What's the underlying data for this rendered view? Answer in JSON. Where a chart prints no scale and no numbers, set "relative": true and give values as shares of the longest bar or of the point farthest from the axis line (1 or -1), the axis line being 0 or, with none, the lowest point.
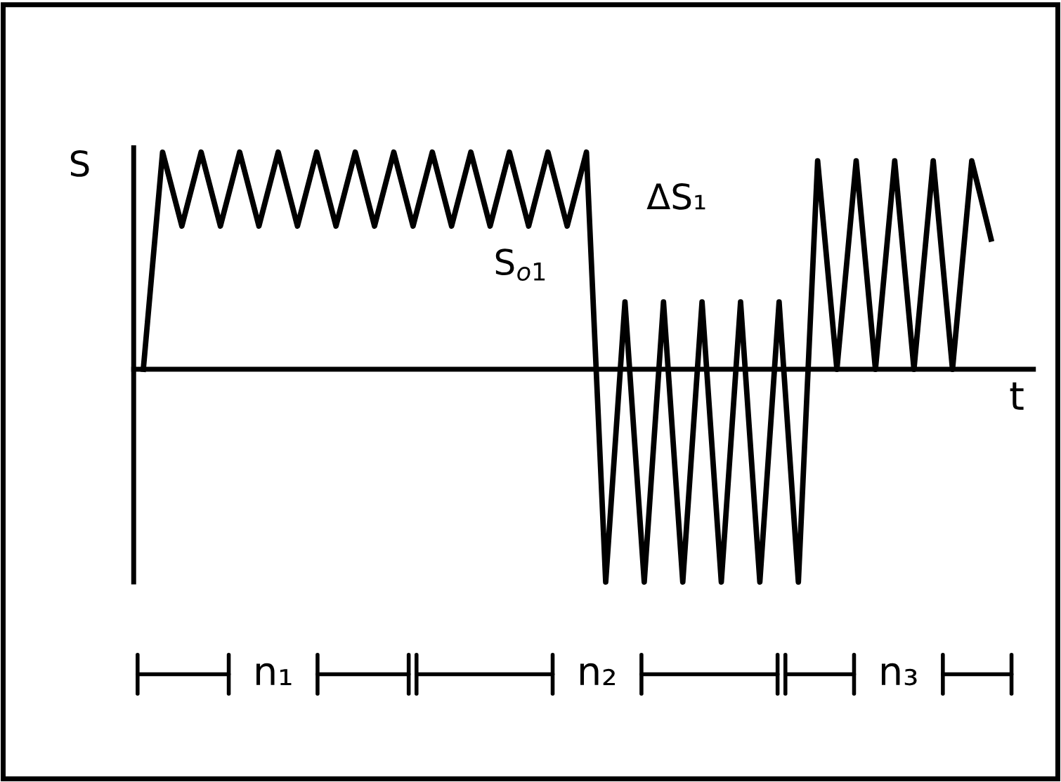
{
  "chart_data": {
    "type": "line",
    "relative": true,
    "xlabel": "t",
    "ylabel": "S",
    "grid": false,
    "legend": false,
    "marker": "none",
    "line_style": "solid",
    "categories": [
      null,
      null,
      null,
      null,
      null,
      null,
      null,
      null,
      null,
      null,
      null,
      null,
      null,
      null,
      null,
      null,
      null,
      null,
      null,
      null,
      null,
      null,
      null,
      null,
      null,
      null,
      null,
      null,
      null,
      null,
      null,
      null,
      null,
      null,
      null,
      null,
      null,
      null,
      null,
      null,
      null,
      null,
      null,
      null,
      null
    ],
    "series": [
      {
        "color": "#000000",
        "values": [
          0,
          1,
          0.66,
          1,
          0.66,
          1,
          0.66,
          1,
          0.66,
          1,
          0.66,
          1,
          0.66,
          1,
          0.66,
          1,
          0.66,
          1,
          0.66,
          1,
          0.66,
          1,
          0.66,
          1,
          -0.98,
          0.31,
          -0.98,
          0.31,
          -0.98,
          0.31,
          -0.98,
          0.31,
          -0.98,
          0.31,
          -0.98,
          0.96,
          0,
          0.96,
          0,
          0.96,
          0,
          0.96,
          0,
          0.96,
          0.6
        ]
      }
    ],
    "annotations": [
      "ΔS₁",
      "S$_{o1}$",
      "n₁",
      "n₂",
      "n₃"
    ]
  }
}
